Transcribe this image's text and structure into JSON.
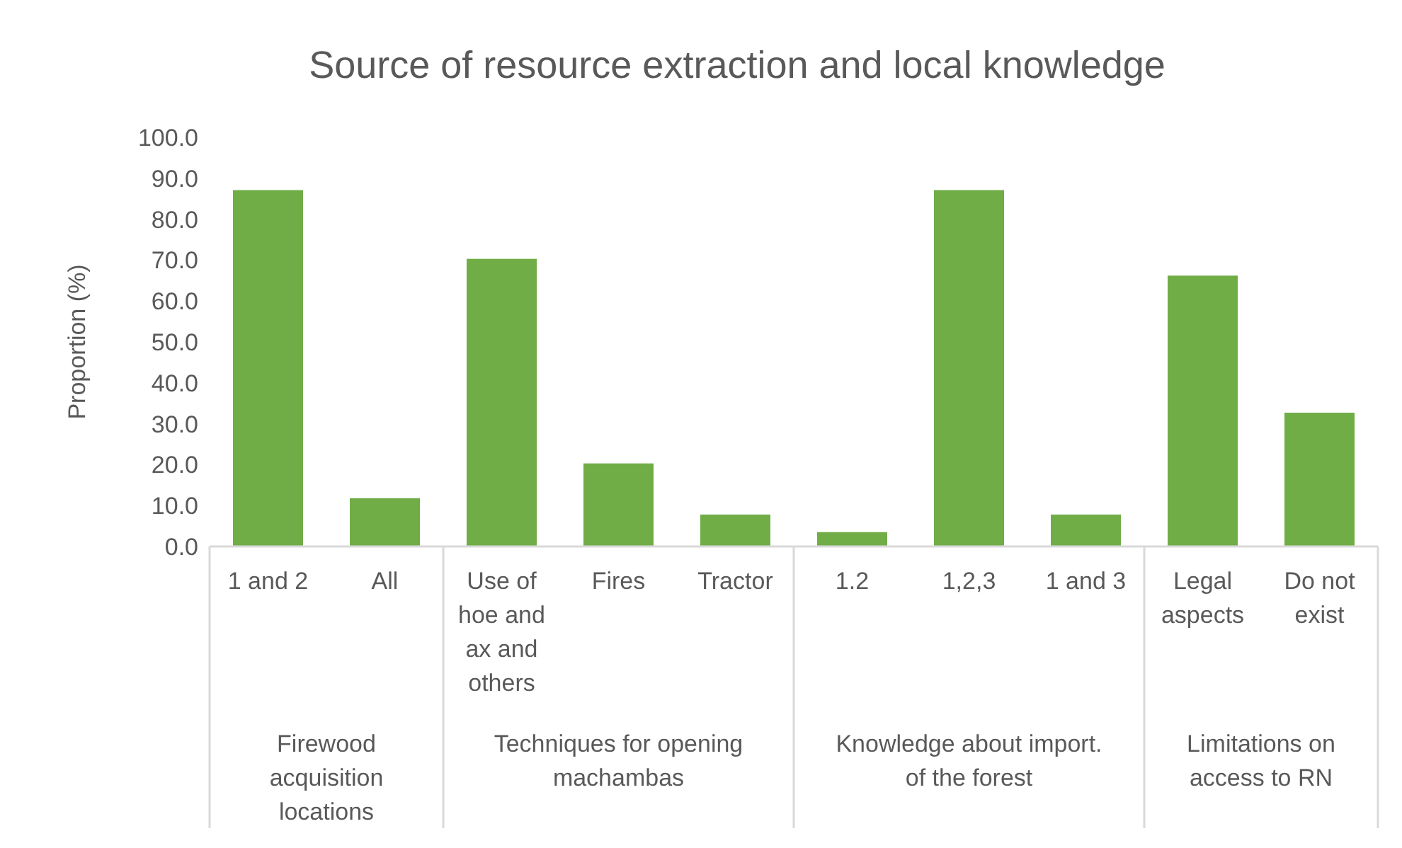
{
  "chart_data": {
    "type": "bar",
    "title": "Source of resource extraction and local knowledge",
    "ylabel": "Proportion (%)",
    "categories": [
      "1 and 2",
      "All",
      "Use of hoe and ax and others",
      "Fires",
      "Tractor",
      "1.2",
      "1,2,3",
      "1 and 3",
      "Legal aspects",
      "Do not exist"
    ],
    "values": [
      87.1,
      11.8,
      70.3,
      20.3,
      7.8,
      3.5,
      87.1,
      7.8,
      66.2,
      32.7
    ],
    "color": "#70ad47",
    "ylim": [
      0,
      100
    ],
    "yticks": [
      {
        "value": 0,
        "label": "0.0"
      },
      {
        "value": 10,
        "label": "10.0"
      },
      {
        "value": 20,
        "label": "20.0"
      },
      {
        "value": 30,
        "label": "30.0"
      },
      {
        "value": 40,
        "label": "40.0"
      },
      {
        "value": 50,
        "label": "50.0"
      },
      {
        "value": 60,
        "label": "60.0"
      },
      {
        "value": 70,
        "label": "70.0"
      },
      {
        "value": 80,
        "label": "80.0"
      },
      {
        "value": 90,
        "label": "90.0"
      },
      {
        "value": 100,
        "label": "100.0"
      }
    ],
    "annotations": [
      "Firewood acquisition locations",
      "Techniques for opening machambas",
      "Knowledge about import. of the forest",
      "Limitations on access to RN"
    ]
  }
}
